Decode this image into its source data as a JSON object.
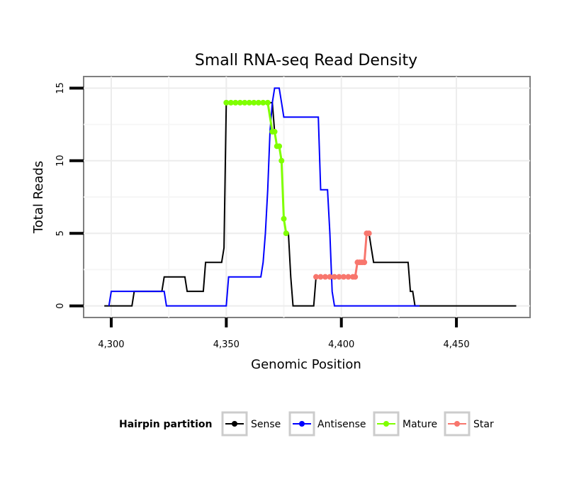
{
  "chart_data": {
    "type": "line",
    "title": "Small RNA-seq Read Density",
    "xlabel": "Genomic Position",
    "ylabel": "Total Reads",
    "xlim": [
      4288,
      4482
    ],
    "ylim": [
      -0.8,
      15.8
    ],
    "x_ticks": [
      4300,
      4350,
      4400,
      4450
    ],
    "x_tick_labels": [
      "4,300",
      "4,350",
      "4,400",
      "4,450"
    ],
    "y_ticks": [
      0,
      5,
      10,
      15
    ],
    "y_tick_labels": [
      "0",
      "5",
      "10",
      "15"
    ],
    "grid": true,
    "legend_position": "bottom",
    "legend_title": "Hairpin partition",
    "series": [
      {
        "name": "Sense",
        "color": "#000000",
        "x": [
          4297,
          4309,
          4310,
          4322,
          4323,
          4332,
          4333,
          4340,
          4341,
          4346,
          4347,
          4348,
          4349,
          4350,
          4355,
          4360,
          4365,
          4369,
          4370,
          4371,
          4372,
          4373,
          4374,
          4375,
          4376,
          4377,
          4378,
          4379,
          4388,
          4389,
          4394,
          4400,
          4405,
          4406,
          4407,
          4408,
          4409,
          4410,
          4411,
          4412,
          4413,
          4414,
          4415,
          4425,
          4429,
          4430,
          4431,
          4432,
          4433,
          4434,
          4476
        ],
        "y": [
          0,
          0,
          1,
          1,
          2,
          2,
          1,
          1,
          3,
          3,
          3,
          3,
          4,
          14,
          14,
          14,
          14,
          14,
          14,
          12,
          11,
          11,
          10,
          6,
          5,
          5,
          2,
          0,
          0,
          2,
          2,
          2,
          2,
          2,
          3,
          3,
          3,
          3,
          5,
          5,
          4,
          3,
          3,
          3,
          3,
          1,
          1,
          0,
          0,
          0,
          0
        ]
      },
      {
        "name": "Antisense",
        "color": "#0000ff",
        "x": [
          4299,
          4300,
          4323,
          4324,
          4349,
          4350,
          4351,
          4364,
          4365,
          4366,
          4367,
          4368,
          4369,
          4370,
          4371,
          4372,
          4373,
          4374,
          4375,
          4376,
          4389,
          4390,
          4391,
          4392,
          4393,
          4394,
          4395,
          4396,
          4397,
          4434
        ],
        "y": [
          0,
          1,
          1,
          0,
          0,
          0,
          2,
          2,
          2,
          3,
          5,
          8,
          12,
          14,
          15,
          15,
          15,
          14,
          13,
          13,
          13,
          13,
          8,
          8,
          8,
          8,
          5,
          1,
          0,
          0
        ]
      },
      {
        "name": "Mature",
        "color": "#7fff00",
        "x": [
          4350,
          4352,
          4354,
          4356,
          4358,
          4360,
          4362,
          4364,
          4366,
          4368,
          4370,
          4371,
          4372,
          4373,
          4374,
          4375,
          4376
        ],
        "y": [
          14,
          14,
          14,
          14,
          14,
          14,
          14,
          14,
          14,
          14,
          12,
          12,
          11,
          11,
          10,
          6,
          5
        ]
      },
      {
        "name": "Star",
        "color": "#f8766d",
        "x": [
          4389,
          4391,
          4393,
          4395,
          4397,
          4399,
          4401,
          4403,
          4405,
          4406,
          4407,
          4408,
          4409,
          4410,
          4411,
          4412
        ],
        "y": [
          2,
          2,
          2,
          2,
          2,
          2,
          2,
          2,
          2,
          2,
          3,
          3,
          3,
          3,
          5,
          5
        ]
      }
    ]
  }
}
